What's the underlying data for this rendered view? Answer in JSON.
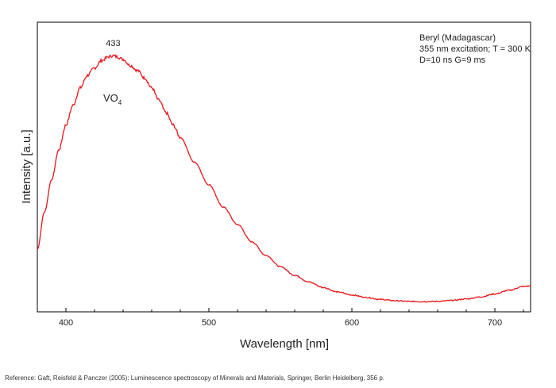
{
  "chart_data": {
    "type": "line",
    "xlabel": "Wavelength [nm]",
    "ylabel": "Intensity [a.u.]",
    "xlim": [
      380,
      725
    ],
    "ylim": [
      0,
      1
    ],
    "xticks": [
      400,
      500,
      600,
      700
    ],
    "yticks_shown": false,
    "grid": false,
    "legend": "none",
    "series": [
      {
        "color": "#e8161b",
        "x": [
          380,
          385,
          390,
          395,
          400,
          405,
          410,
          415,
          420,
          425,
          430,
          433,
          436,
          440,
          445,
          450,
          455,
          460,
          465,
          470,
          475,
          480,
          490,
          500,
          510,
          520,
          530,
          540,
          550,
          560,
          570,
          580,
          590,
          600,
          610,
          620,
          630,
          640,
          650,
          660,
          670,
          680,
          690,
          700,
          710,
          720,
          725
        ],
        "y": [
          0.22,
          0.37,
          0.5,
          0.62,
          0.72,
          0.8,
          0.87,
          0.92,
          0.95,
          0.98,
          0.995,
          1.0,
          0.995,
          0.985,
          0.96,
          0.94,
          0.91,
          0.87,
          0.82,
          0.77,
          0.72,
          0.67,
          0.57,
          0.48,
          0.39,
          0.32,
          0.25,
          0.195,
          0.15,
          0.115,
          0.088,
          0.066,
          0.048,
          0.036,
          0.026,
          0.018,
          0.013,
          0.01,
          0.009,
          0.01,
          0.014,
          0.02,
          0.028,
          0.04,
          0.055,
          0.07,
          0.072
        ]
      }
    ],
    "annotations": {
      "peak_label": "433",
      "peak_x": 433,
      "species_main": "VO",
      "species_sub": "4",
      "info_lines": [
        "Beryl (Madagascar)",
        "355 nm excitation; T = 300 K",
        "D=10 ns G=9 ms"
      ]
    }
  },
  "reference": "Reference: Gaft, Reisfeld & Panczer (2005): Luminescence spectroscopy of Minerals and Materials, Springer, Berlin Heidelberg, 356 p."
}
